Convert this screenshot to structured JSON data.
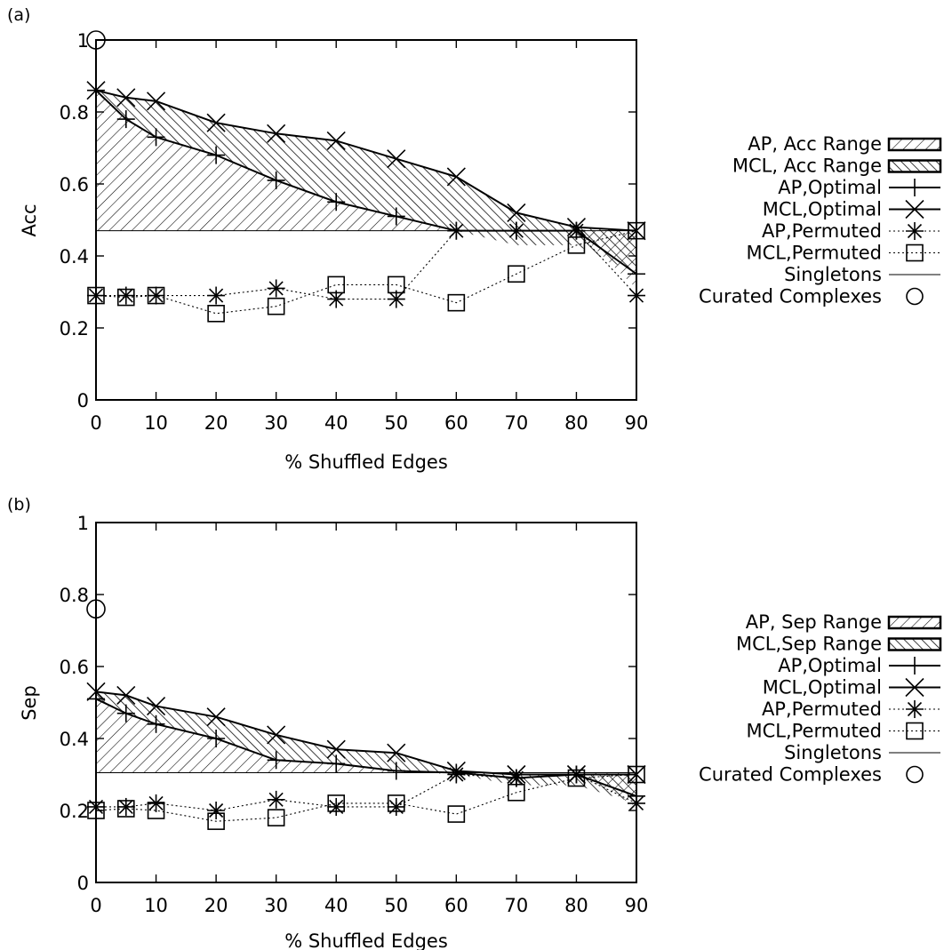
{
  "chart_data": [
    {
      "type": "line",
      "panel_label": "(a)",
      "xlabel": "% Shuffled Edges",
      "ylabel": "Acc",
      "x": [
        0,
        5,
        10,
        20,
        30,
        40,
        50,
        60,
        70,
        80,
        90
      ],
      "x_ticks": [
        0,
        10,
        20,
        30,
        40,
        50,
        60,
        70,
        80,
        90
      ],
      "y_ticks": [
        0,
        0.2,
        0.4,
        0.6,
        0.8,
        1
      ],
      "y_tick_labels": [
        "0",
        "0.2",
        "0.4",
        "0.6",
        "0.8",
        "1"
      ],
      "ylim": [
        0,
        1
      ],
      "grid": false,
      "legend_position": "right",
      "ranges": [
        {
          "name": "AP, Acc Range",
          "hatch": "down-diagonal",
          "low": [
            0.47,
            0.47,
            0.47,
            0.47,
            0.47,
            0.47,
            0.47,
            0.47,
            0.47,
            0.47,
            0.31
          ],
          "high": [
            0.86,
            0.78,
            0.73,
            0.68,
            0.61,
            0.55,
            0.51,
            0.47,
            0.47,
            0.47,
            0.47
          ]
        },
        {
          "name": "MCL, Acc Range",
          "hatch": "up-diagonal",
          "low": [
            0.86,
            0.78,
            0.73,
            0.68,
            0.61,
            0.55,
            0.51,
            0.47,
            0.43,
            0.43,
            0.35
          ],
          "high": [
            0.86,
            0.84,
            0.83,
            0.77,
            0.74,
            0.72,
            0.67,
            0.62,
            0.52,
            0.48,
            0.47
          ]
        }
      ],
      "series": [
        {
          "name": "AP,Optimal",
          "style": "solid",
          "marker": "plus",
          "values": [
            0.86,
            0.78,
            0.73,
            0.68,
            0.61,
            0.55,
            0.51,
            0.47,
            0.47,
            0.47,
            0.35
          ]
        },
        {
          "name": "MCL,Optimal",
          "style": "solid",
          "marker": "cross",
          "values": [
            0.86,
            0.84,
            0.83,
            0.77,
            0.74,
            0.72,
            0.67,
            0.62,
            0.52,
            0.48,
            0.47
          ]
        },
        {
          "name": "AP,Permuted",
          "style": "dotted",
          "marker": "star",
          "values": [
            0.29,
            0.29,
            0.29,
            0.29,
            0.31,
            0.28,
            0.28,
            0.47,
            0.47,
            0.47,
            0.29
          ]
        },
        {
          "name": "MCL,Permuted",
          "style": "dotted",
          "marker": "square",
          "values": [
            0.29,
            0.285,
            0.29,
            0.24,
            0.26,
            0.32,
            0.32,
            0.27,
            0.35,
            0.43,
            0.47
          ]
        }
      ],
      "singletons": {
        "name": "Singletons",
        "value": 0.47
      },
      "curated": {
        "name": "Curated Complexes",
        "x": 0,
        "y": 1.0
      }
    },
    {
      "type": "line",
      "panel_label": "(b)",
      "xlabel": "% Shuffled Edges",
      "ylabel": "Sep",
      "x": [
        0,
        5,
        10,
        20,
        30,
        40,
        50,
        60,
        70,
        80,
        90
      ],
      "x_ticks": [
        0,
        10,
        20,
        30,
        40,
        50,
        60,
        70,
        80,
        90
      ],
      "y_ticks": [
        0,
        0.2,
        0.4,
        0.6,
        0.8,
        1
      ],
      "y_tick_labels": [
        "0",
        "0.2",
        "0.4",
        "0.6",
        "0.8",
        "1"
      ],
      "ylim": [
        0,
        1
      ],
      "grid": false,
      "legend_position": "right",
      "ranges": [
        {
          "name": "AP, Sep Range",
          "hatch": "down-diagonal",
          "low": [
            0.305,
            0.305,
            0.305,
            0.305,
            0.305,
            0.305,
            0.305,
            0.305,
            0.305,
            0.305,
            0.21
          ],
          "high": [
            0.51,
            0.47,
            0.44,
            0.4,
            0.34,
            0.33,
            0.31,
            0.305,
            0.305,
            0.305,
            0.305
          ]
        },
        {
          "name": "MCL,Sep Range",
          "hatch": "up-diagonal",
          "low": [
            0.51,
            0.47,
            0.44,
            0.4,
            0.34,
            0.33,
            0.31,
            0.3,
            0.27,
            0.27,
            0.22
          ],
          "high": [
            0.53,
            0.52,
            0.49,
            0.46,
            0.41,
            0.37,
            0.36,
            0.31,
            0.3,
            0.3,
            0.3
          ]
        }
      ],
      "series": [
        {
          "name": "AP,Optimal",
          "style": "solid",
          "marker": "plus",
          "values": [
            0.51,
            0.47,
            0.44,
            0.4,
            0.34,
            0.33,
            0.31,
            0.305,
            0.29,
            0.3,
            0.24
          ]
        },
        {
          "name": "MCL,Optimal",
          "style": "solid",
          "marker": "cross",
          "values": [
            0.53,
            0.52,
            0.49,
            0.46,
            0.41,
            0.37,
            0.36,
            0.31,
            0.3,
            0.3,
            0.3
          ]
        },
        {
          "name": "AP,Permuted",
          "style": "dotted",
          "marker": "star",
          "values": [
            0.21,
            0.21,
            0.22,
            0.2,
            0.23,
            0.21,
            0.21,
            0.3,
            0.29,
            0.3,
            0.22
          ]
        },
        {
          "name": "MCL,Permuted",
          "style": "dotted",
          "marker": "square",
          "values": [
            0.2,
            0.205,
            0.2,
            0.17,
            0.18,
            0.22,
            0.22,
            0.19,
            0.25,
            0.29,
            0.3
          ]
        }
      ],
      "singletons": {
        "name": "Singletons",
        "value": 0.305
      },
      "curated": {
        "name": "Curated Complexes",
        "x": 0,
        "y": 0.76
      }
    }
  ]
}
